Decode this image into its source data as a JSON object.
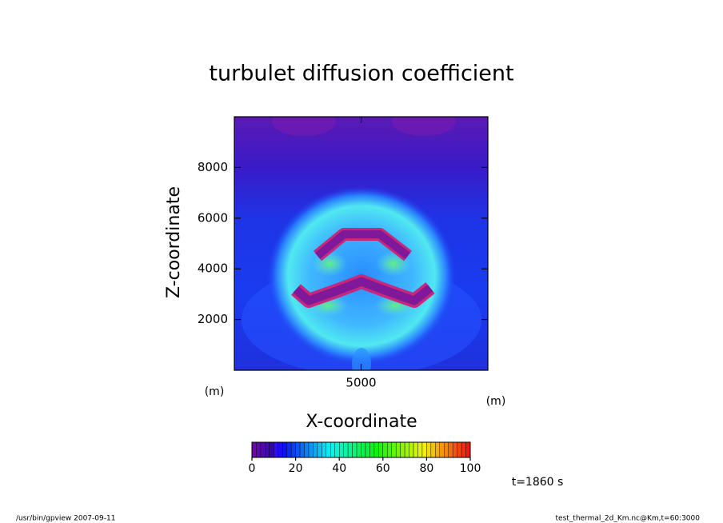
{
  "chart_data": {
    "type": "contour",
    "title": "turbulet diffusion coefficient",
    "xlabel": "X-coordinate",
    "ylabel": "Z-coordinate",
    "xunit": "(m)",
    "yunit": "(m)",
    "xlim": [
      0,
      10000
    ],
    "xticks": [
      5000
    ],
    "ylim": [
      0,
      10000
    ],
    "yticks": [
      2000,
      4000,
      6000,
      8000
    ],
    "clim": [
      0,
      100
    ],
    "cticks": [
      0,
      20,
      40,
      60,
      80,
      100
    ],
    "time": "t=1860 s",
    "footer_left": "/usr/bin/gpview   2007-09-11",
    "footer_right": "test_thermal_2d_Km.nc@Km,t=60:3000"
  }
}
